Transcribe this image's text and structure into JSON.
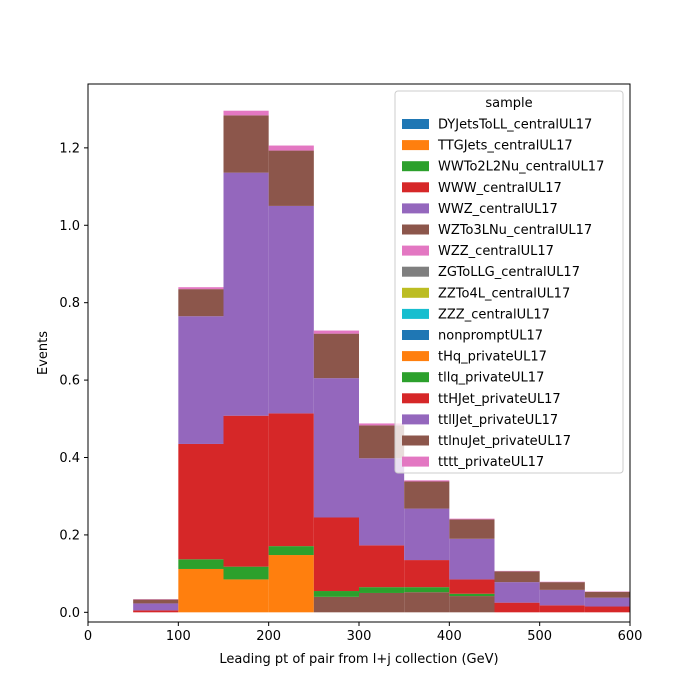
{
  "chart_data": {
    "type": "bar",
    "stacked": true,
    "histogram": true,
    "xlabel": "Leading pt of pair from l+j collection (GeV)",
    "ylabel": "Events",
    "xlim": [
      0,
      600
    ],
    "ylim": [
      -0.025,
      1.365
    ],
    "xticks": [
      0,
      100,
      200,
      300,
      400,
      500,
      600
    ],
    "yticks": [
      0.0,
      0.2,
      0.4,
      0.6,
      0.8,
      1.0,
      1.2
    ],
    "bin_edges": [
      50,
      100,
      150,
      200,
      250,
      300,
      350,
      400,
      450,
      500,
      550,
      600
    ],
    "legend": {
      "title": "sample",
      "placement": "upper-right"
    },
    "series": [
      {
        "name": "DYJetsToLL_centralUL17",
        "color": "#1f77b4",
        "values": [
          0,
          0,
          0,
          0,
          0,
          0,
          0,
          0,
          0,
          0,
          0
        ]
      },
      {
        "name": "TTGJets_centralUL17",
        "color": "#ff7f0e",
        "values": [
          0,
          0.112,
          0.085,
          0.148,
          0,
          0,
          0,
          0,
          0,
          0,
          0
        ]
      },
      {
        "name": "WWTo2L2Nu_centralUL17",
        "color": "#2ca02c",
        "values": [
          0,
          0.025,
          0.033,
          0.023,
          0,
          0,
          0,
          0,
          0,
          0,
          0
        ]
      },
      {
        "name": "WWW_centralUL17",
        "color": "#d62728",
        "values": [
          0,
          0,
          0,
          0,
          0,
          0,
          0,
          0,
          0,
          0,
          0
        ]
      },
      {
        "name": "WWZ_centralUL17",
        "color": "#9467bd",
        "values": [
          0,
          0,
          0,
          0,
          0,
          0,
          0,
          0,
          0,
          0,
          0
        ]
      },
      {
        "name": "WZTo3LNu_centralUL17",
        "color": "#8c564b",
        "values": [
          0,
          0,
          0,
          0,
          0.04,
          0.05,
          0.052,
          0.042,
          0,
          0,
          0
        ]
      },
      {
        "name": "WZZ_centralUL17",
        "color": "#e377c2",
        "values": [
          0,
          0,
          0,
          0,
          0,
          0,
          0,
          0,
          0,
          0,
          0
        ]
      },
      {
        "name": "ZGToLLG_centralUL17",
        "color": "#7f7f7f",
        "values": [
          0,
          0,
          0,
          0,
          0,
          0,
          0,
          0,
          0,
          0,
          0
        ]
      },
      {
        "name": "ZZTo4L_centralUL17",
        "color": "#bcbd22",
        "values": [
          0,
          0,
          0,
          0,
          0,
          0,
          0,
          0,
          0,
          0,
          0
        ]
      },
      {
        "name": "ZZZ_centralUL17",
        "color": "#17becf",
        "values": [
          0,
          0,
          0,
          0,
          0,
          0,
          0,
          0,
          0,
          0,
          0
        ]
      },
      {
        "name": "nonpromptUL17",
        "color": "#1f77b4",
        "values": [
          0,
          0,
          0,
          0,
          0,
          0,
          0,
          0,
          0,
          0,
          0
        ]
      },
      {
        "name": "tHq_privateUL17",
        "color": "#ff7f0e",
        "values": [
          0,
          0,
          0,
          0,
          0,
          0,
          0,
          0,
          0,
          0,
          0
        ]
      },
      {
        "name": "tllq_privateUL17",
        "color": "#2ca02c",
        "values": [
          0,
          0,
          0,
          0,
          0.015,
          0.015,
          0.013,
          0.006,
          0,
          0,
          0
        ]
      },
      {
        "name": "ttHJet_privateUL17",
        "color": "#d62728",
        "values": [
          0.005,
          0.298,
          0.39,
          0.343,
          0.19,
          0.108,
          0.07,
          0.037,
          0.025,
          0.018,
          0.015
        ]
      },
      {
        "name": "ttllJet_privateUL17",
        "color": "#9467bd",
        "values": [
          0.018,
          0.33,
          0.628,
          0.536,
          0.36,
          0.225,
          0.133,
          0.105,
          0.053,
          0.04,
          0.023
        ]
      },
      {
        "name": "ttlnuJet_privateUL17",
        "color": "#8c564b",
        "values": [
          0.01,
          0.07,
          0.148,
          0.143,
          0.115,
          0.085,
          0.07,
          0.05,
          0.028,
          0.02,
          0.015
        ]
      },
      {
        "name": "tttt_privateUL17",
        "color": "#e377c2",
        "values": [
          0.001,
          0.005,
          0.012,
          0.013,
          0.008,
          0.005,
          0.003,
          0.002,
          0.001,
          0.001,
          0.001
        ]
      }
    ]
  }
}
